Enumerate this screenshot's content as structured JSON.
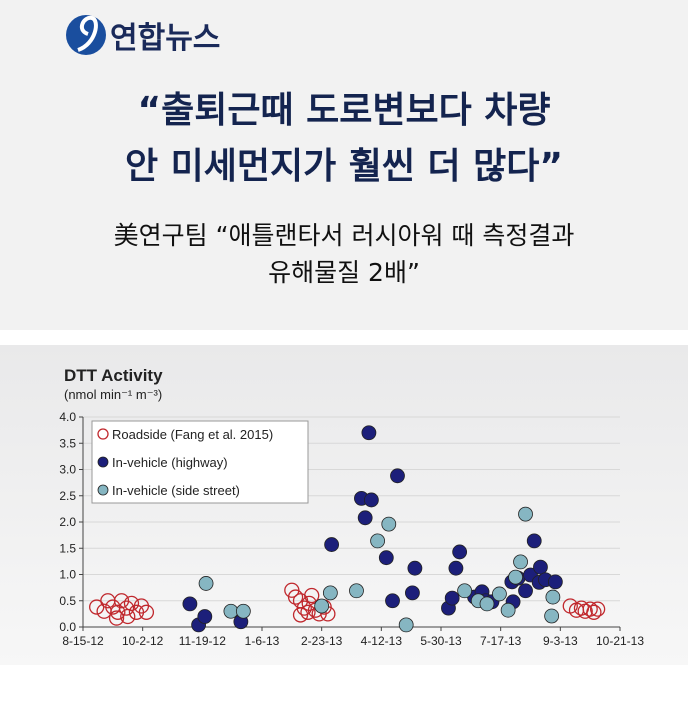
{
  "header": {
    "brand": "연합뉴스",
    "headline": [
      "“출퇴근때 도로변보다 차량",
      "안 미세먼지가 훨씬 더 많다”"
    ],
    "subtitle": [
      "美연구팀 “애틀랜타서 러시아워 때 측정결과",
      "유해물질 2배”"
    ]
  },
  "chart_data": {
    "type": "scatter",
    "title": "DTT Activity",
    "ylabel": "(nmol min⁻¹ m⁻³)",
    "xlim": [
      "2012-08-15",
      "2013-10-21"
    ],
    "xticks": [
      {
        "value": "2012-08-15",
        "label": "8-15-12"
      },
      {
        "value": "2012-10-02",
        "label": "10-2-12"
      },
      {
        "value": "2012-11-19",
        "label": "11-19-12"
      },
      {
        "value": "2013-01-06",
        "label": "1-6-13"
      },
      {
        "value": "2013-02-23",
        "label": "2-23-13"
      },
      {
        "value": "2013-04-12",
        "label": "4-12-13"
      },
      {
        "value": "2013-05-30",
        "label": "5-30-13"
      },
      {
        "value": "2013-07-17",
        "label": "7-17-13"
      },
      {
        "value": "2013-09-03",
        "label": "9-3-13"
      },
      {
        "value": "2013-10-21",
        "label": "10-21-13"
      }
    ],
    "ylim": [
      0,
      4
    ],
    "yticks": [
      {
        "value": 0,
        "label": "0.0"
      },
      {
        "value": 0.5,
        "label": "0.5"
      },
      {
        "value": 1,
        "label": "1.0"
      },
      {
        "value": 1.5,
        "label": "1.5"
      },
      {
        "value": 2,
        "label": "2.0"
      },
      {
        "value": 2.5,
        "label": "2.5"
      },
      {
        "value": 3,
        "label": "3.0"
      },
      {
        "value": 3.5,
        "label": "3.5"
      },
      {
        "value": 4,
        "label": "4.0"
      }
    ],
    "grid": true,
    "legend": "upper left",
    "series": [
      {
        "name": "Roadside (Fang et al. 2015)",
        "color": "#c0282d",
        "marker": "open",
        "x": [
          "2012-08-26",
          "2012-09-01",
          "2012-09-04",
          "2012-09-08",
          "2012-09-12",
          "2012-09-15",
          "2012-09-19",
          "2012-09-23",
          "2012-09-27",
          "2012-10-01",
          "2012-10-05",
          "2012-09-11",
          "2012-09-20",
          "2013-01-30",
          "2013-02-02",
          "2013-02-06",
          "2013-02-09",
          "2013-02-12",
          "2013-02-13",
          "2013-02-18",
          "2013-02-21",
          "2013-02-25",
          "2013-02-28",
          "2013-02-06",
          "2013-02-15",
          "2013-09-11",
          "2013-09-16",
          "2013-09-20",
          "2013-09-23",
          "2013-09-27",
          "2013-09-30",
          "2013-10-03"
        ],
        "values": [
          0.38,
          0.3,
          0.5,
          0.38,
          0.28,
          0.5,
          0.36,
          0.45,
          0.28,
          0.4,
          0.28,
          0.17,
          0.2,
          0.7,
          0.57,
          0.5,
          0.36,
          0.28,
          0.45,
          0.32,
          0.25,
          0.38,
          0.25,
          0.23,
          0.6,
          0.4,
          0.32,
          0.36,
          0.3,
          0.34,
          0.28,
          0.34
        ]
      },
      {
        "name": "In-vehicle (highway)",
        "color": "#1c1f7a",
        "marker": "filled",
        "x": [
          "2012-11-09",
          "2012-11-16",
          "2012-11-21",
          "2012-12-20",
          "2013-03-03",
          "2013-03-27",
          "2013-03-30",
          "2013-04-02",
          "2013-04-04",
          "2013-04-16",
          "2013-04-21",
          "2013-04-25",
          "2013-05-07",
          "2013-05-09",
          "2013-06-05",
          "2013-06-08",
          "2013-06-11",
          "2013-06-14",
          "2013-06-26",
          "2013-07-02",
          "2013-07-05",
          "2013-07-10",
          "2013-07-26",
          "2013-07-27",
          "2013-07-31",
          "2013-08-06",
          "2013-08-10",
          "2013-08-13",
          "2013-08-17",
          "2013-08-18",
          "2013-08-22",
          "2013-08-30"
        ],
        "values": [
          0.44,
          0.04,
          0.2,
          0.1,
          1.57,
          2.45,
          2.08,
          3.7,
          2.42,
          1.32,
          0.5,
          2.88,
          0.65,
          1.12,
          0.36,
          0.55,
          1.12,
          1.43,
          0.57,
          0.67,
          0.5,
          0.48,
          0.86,
          0.48,
          0.93,
          0.69,
          0.99,
          1.64,
          0.85,
          1.14,
          0.9,
          0.86
        ]
      },
      {
        "name": "In-vehicle (side street)",
        "color": "#86b6c2",
        "marker": "filled",
        "x": [
          "2012-11-22",
          "2012-12-12",
          "2012-12-22",
          "2013-02-23",
          "2013-03-02",
          "2013-03-23",
          "2013-04-09",
          "2013-04-18",
          "2013-05-02",
          "2013-06-18",
          "2013-06-29",
          "2013-07-06",
          "2013-07-16",
          "2013-07-23",
          "2013-07-29",
          "2013-08-02",
          "2013-08-06",
          "2013-08-27",
          "2013-08-28"
        ],
        "values": [
          0.83,
          0.3,
          0.3,
          0.4,
          0.65,
          0.69,
          1.64,
          1.96,
          0.04,
          0.69,
          0.5,
          0.44,
          0.63,
          0.32,
          0.95,
          1.24,
          2.15,
          0.21,
          0.57
        ]
      }
    ]
  }
}
